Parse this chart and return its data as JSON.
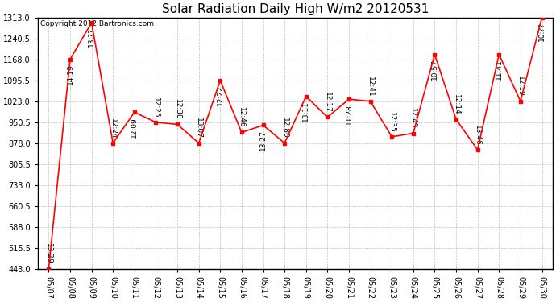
{
  "title": "Solar Radiation Daily High W/m2 20120531",
  "copyright": "Copyright 2012 Bartronics.com",
  "dates": [
    "05/07",
    "05/08",
    "05/09",
    "05/10",
    "05/11",
    "05/12",
    "05/13",
    "05/14",
    "05/15",
    "05/16",
    "05/17",
    "05/18",
    "05/19",
    "05/20",
    "05/21",
    "05/22",
    "05/23",
    "05/24",
    "05/25",
    "05/26",
    "05/27",
    "05/28",
    "05/29",
    "05/30"
  ],
  "values": [
    443,
    1168,
    1295,
    878,
    985,
    950,
    943,
    878,
    1095,
    915,
    940,
    878,
    1040,
    968,
    1030,
    1023,
    900,
    912,
    1185,
    960,
    855,
    1185,
    1023,
    1313
  ],
  "labels": [
    "13:29",
    "14:19",
    "13:??",
    "12:24",
    "12:09",
    "12:25",
    "12:38",
    "13:07",
    "12:22",
    "12:46",
    "13:27",
    "12:80",
    "13:11",
    "12:17",
    "11:28",
    "12:41",
    "12:35",
    "12:43",
    "10:57",
    "12:14",
    "13:46",
    "11:41",
    "12:19",
    "10:??"
  ],
  "line_color": "#ff0000",
  "marker_color": "#ff0000",
  "bg_color": "#ffffff",
  "grid_color": "#c0c0c0",
  "ytick_values": [
    443.0,
    515.5,
    588.0,
    660.5,
    733.0,
    805.5,
    878.0,
    950.5,
    1023.0,
    1095.5,
    1168.0,
    1240.5,
    1313.0
  ],
  "ylim_low": 443.0,
  "ylim_high": 1313.0,
  "title_fontsize": 11,
  "annot_fontsize": 6.5,
  "tick_fontsize": 7,
  "copyright_fontsize": 6.5
}
